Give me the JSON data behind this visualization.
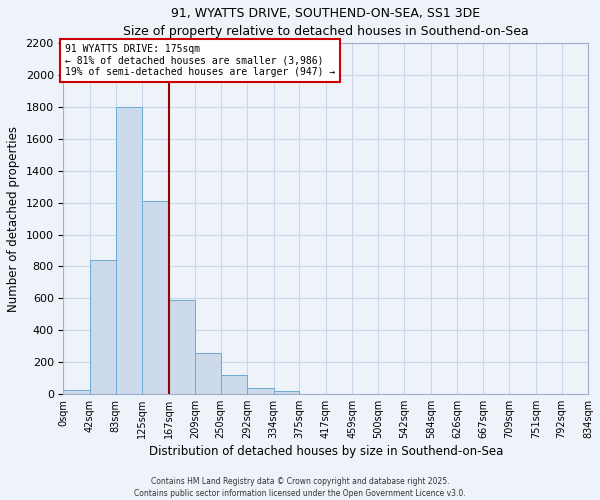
{
  "title": "91, WYATTS DRIVE, SOUTHEND-ON-SEA, SS1 3DE",
  "subtitle": "Size of property relative to detached houses in Southend-on-Sea",
  "xlabel": "Distribution of detached houses by size in Southend-on-Sea",
  "ylabel": "Number of detached properties",
  "bin_edges": [
    0,
    42,
    83,
    125,
    167,
    209,
    250,
    292,
    334,
    375,
    417,
    459,
    500,
    542,
    584,
    626,
    667,
    709,
    751,
    792,
    834
  ],
  "bin_labels": [
    "0sqm",
    "42sqm",
    "83sqm",
    "125sqm",
    "167sqm",
    "209sqm",
    "250sqm",
    "292sqm",
    "334sqm",
    "375sqm",
    "417sqm",
    "459sqm",
    "500sqm",
    "542sqm",
    "584sqm",
    "626sqm",
    "667sqm",
    "709sqm",
    "751sqm",
    "792sqm",
    "834sqm"
  ],
  "counts": [
    25,
    840,
    1800,
    1210,
    590,
    255,
    120,
    40,
    20,
    0,
    0,
    0,
    0,
    0,
    0,
    0,
    0,
    0,
    0,
    0
  ],
  "bar_facecolor": "#cddaeb",
  "bar_edgecolor": "#6aaad4",
  "grid_color": "#c8d8ea",
  "background_color": "#eef3f9",
  "vline_x": 167,
  "vline_color": "#990000",
  "annotation_title": "91 WYATTS DRIVE: 175sqm",
  "annotation_line1": "← 81% of detached houses are smaller (3,986)",
  "annotation_line2": "19% of semi-detached houses are larger (947) →",
  "annotation_box_facecolor": "#ffffff",
  "annotation_box_edgecolor": "#cc0000",
  "ylim": [
    0,
    2200
  ],
  "yticks": [
    0,
    200,
    400,
    600,
    800,
    1000,
    1200,
    1400,
    1600,
    1800,
    2000,
    2200
  ],
  "footer1": "Contains HM Land Registry data © Crown copyright and database right 2025.",
  "footer2": "Contains public sector information licensed under the Open Government Licence v3.0."
}
